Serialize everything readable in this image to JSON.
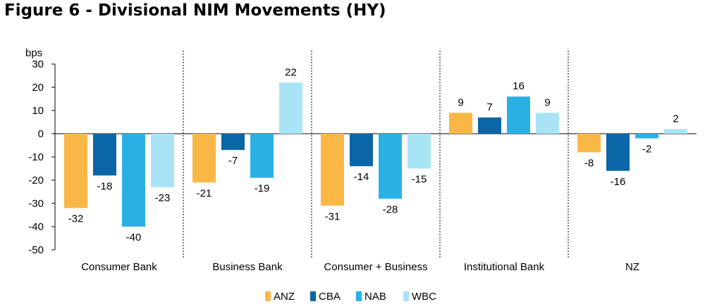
{
  "title": "Figure 6 - Divisional NIM Movements (HY)",
  "chart_data": {
    "type": "bar",
    "ylabel": "bps",
    "ylim": [
      -50,
      30
    ],
    "yticks": [
      30,
      20,
      10,
      0,
      -10,
      -20,
      -30,
      -40,
      -50
    ],
    "categories": [
      "Consumer Bank",
      "Business Bank",
      "Consumer + Business",
      "Institutional Bank",
      "NZ"
    ],
    "series": [
      {
        "name": "ANZ",
        "color": "#F9B846",
        "values": [
          -32,
          -21,
          -31,
          9,
          -8
        ],
        "labels": [
          "-32",
          "-21",
          "-31",
          "9",
          "-8"
        ]
      },
      {
        "name": "CBA",
        "color": "#0B66A8",
        "values": [
          -18,
          -7,
          -14,
          7,
          -16
        ],
        "labels": [
          "-18",
          "-7",
          "-14",
          "7",
          "-16"
        ]
      },
      {
        "name": "NAB",
        "color": "#2AB1E4",
        "values": [
          -40,
          -19,
          -28,
          16,
          -2
        ],
        "labels": [
          "-40",
          "-19",
          "-28",
          "16",
          "-2"
        ]
      },
      {
        "name": "WBC",
        "color": "#A9E4F6",
        "values": [
          -23,
          22,
          -15,
          9,
          2
        ],
        "labels": [
          "-23",
          "22",
          "-15",
          "9",
          "2"
        ]
      }
    ],
    "grid": false,
    "legend_position": "bottom-center"
  }
}
